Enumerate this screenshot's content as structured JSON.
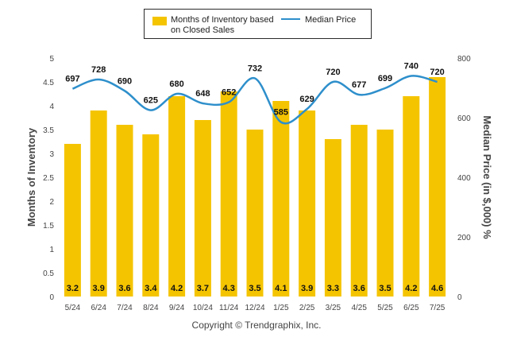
{
  "chart_data": {
    "type": "bar",
    "categories": [
      "5/24",
      "6/24",
      "7/24",
      "8/24",
      "9/24",
      "10/24",
      "11/24",
      "12/24",
      "1/25",
      "2/25",
      "3/25",
      "4/25",
      "5/25",
      "6/25",
      "7/25"
    ],
    "series": [
      {
        "name": "Months of Inventory based on Closed Sales",
        "type": "bar",
        "axis": "left",
        "values": [
          3.2,
          3.9,
          3.6,
          3.4,
          4.2,
          3.7,
          4.3,
          3.5,
          4.1,
          3.9,
          3.3,
          3.6,
          3.5,
          4.2,
          4.6
        ],
        "labels": [
          "3.2",
          "3.9",
          "3.6",
          "3.4",
          "4.2",
          "3.7",
          "4.3",
          "3.5",
          "4.1",
          "3.9",
          "3.3",
          "3.6",
          "3.5",
          "4.2",
          "4.6"
        ],
        "color": "#F5C400"
      },
      {
        "name": "Median Price",
        "type": "line",
        "axis": "right",
        "values": [
          697,
          728,
          690,
          625,
          680,
          648,
          652,
          732,
          585,
          629,
          720,
          677,
          699,
          740,
          720
        ],
        "labels": [
          "697",
          "728",
          "690",
          "625",
          "680",
          "648",
          "652",
          "732",
          "585",
          "629",
          "720",
          "677",
          "699",
          "740",
          "720"
        ],
        "color": "#2E8FCB"
      }
    ],
    "legend": {
      "bar_label_line1": "Months of Inventory based",
      "bar_label_line2": "on Closed Sales",
      "line_label": "Median Price",
      "placement": "top-center"
    },
    "ylabel": "Months of Inventory",
    "y2label": "Median Price (in $,000) %",
    "ylim": [
      0,
      5
    ],
    "y_ticks": [
      "0",
      "0.5",
      "1",
      "1.5",
      "2",
      "2.5",
      "3",
      "3.5",
      "4",
      "4.5",
      "5"
    ],
    "y2lim": [
      0,
      800
    ],
    "y2_ticks": [
      "0",
      "200",
      "400",
      "600",
      "800"
    ],
    "grid": false
  },
  "footer": {
    "copyright": "Copyright © Trendgraphix, Inc."
  }
}
